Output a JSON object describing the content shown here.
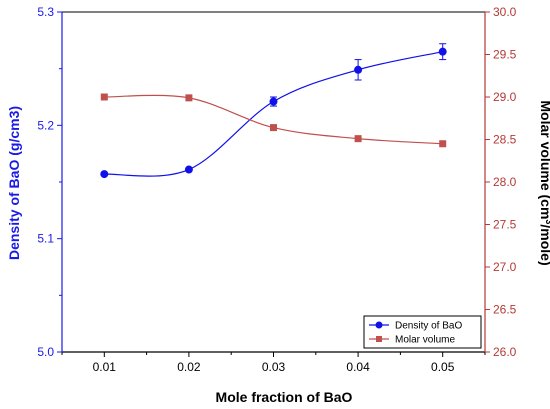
{
  "chart_data": {
    "type": "line",
    "x": [
      0.01,
      0.02,
      0.03,
      0.04,
      0.05
    ],
    "x_tick_labels": [
      "0.01",
      "0.02",
      "0.03",
      "0.04",
      "0.05"
    ],
    "xlim": [
      0.005,
      0.055
    ],
    "xlabel": "Mole fraction of BaO",
    "ylabel_left": "Density of BaO (g/cm3)",
    "ylim_left": [
      5.0,
      5.3
    ],
    "yticks_left": [
      "5.0",
      "5.1",
      "5.2",
      "5.3"
    ],
    "ylabel_right_main": "Molar volume (cm",
    "ylabel_right_sup": "3",
    "ylabel_right_tail": "/mole)",
    "ylim_right": [
      26.0,
      30.0
    ],
    "yticks_right": [
      "26.0",
      "26.5",
      "27.0",
      "27.5",
      "28.0",
      "28.5",
      "29.0",
      "29.5",
      "30.0"
    ],
    "grid": false,
    "legend_position": "bottom-right",
    "series": [
      {
        "name": "Density of BaO",
        "axis": "left",
        "marker": "circle",
        "color": "#1010e8",
        "values": [
          5.157,
          5.161,
          5.221,
          5.249,
          5.265
        ],
        "errors": [
          0.0,
          0.0,
          0.004,
          0.009,
          0.007
        ]
      },
      {
        "name": "Molar volume",
        "axis": "right",
        "marker": "square",
        "color": "#c0504d",
        "values": [
          29.0,
          28.99,
          28.64,
          28.51,
          28.45
        ]
      }
    ],
    "colors": {
      "left_axis": "#1a1ae6",
      "right_axis": "#b33a35",
      "x_axis": "#000000"
    }
  }
}
